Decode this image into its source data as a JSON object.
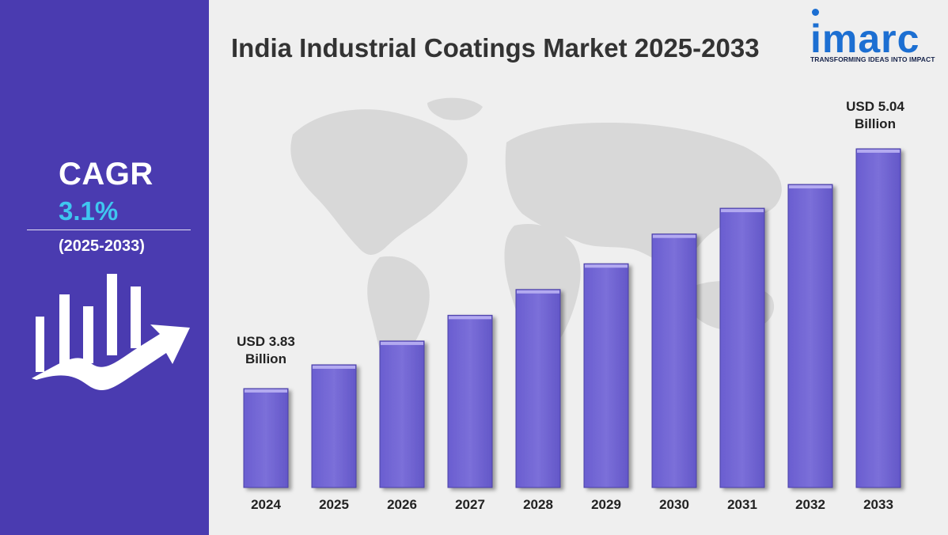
{
  "sidebar": {
    "cagr_label": "CAGR",
    "cagr_value": "3.1%",
    "period": "(2025-2033)",
    "icon": "growth-chart-arrow-icon"
  },
  "header": {
    "title": "India Industrial Coatings Market 2025-2033"
  },
  "logo": {
    "wordmark": "imarc",
    "tagline": "TRANSFORMING IDEAS INTO IMPACT"
  },
  "colors": {
    "sidebar": "#4a3bb0",
    "accent": "#3fc6f0",
    "bar": "#7b6fd9",
    "logo": "#1c6fd2"
  },
  "callouts": {
    "start_line1": "USD 3.83",
    "start_line2": "Billion",
    "end_line1": "USD 5.04",
    "end_line2": "Billion"
  },
  "chart_data": {
    "type": "bar",
    "title": "India Industrial Coatings Market 2025-2033",
    "categories": [
      "2024",
      "2025",
      "2026",
      "2027",
      "2028",
      "2029",
      "2030",
      "2031",
      "2032",
      "2033"
    ],
    "series": [
      {
        "values": [
          3.83,
          3.95,
          4.07,
          4.2,
          4.33,
          4.46,
          4.61,
          4.74,
          4.86,
          5.04
        ]
      }
    ],
    "units": "USD Billion",
    "grid": false
  }
}
